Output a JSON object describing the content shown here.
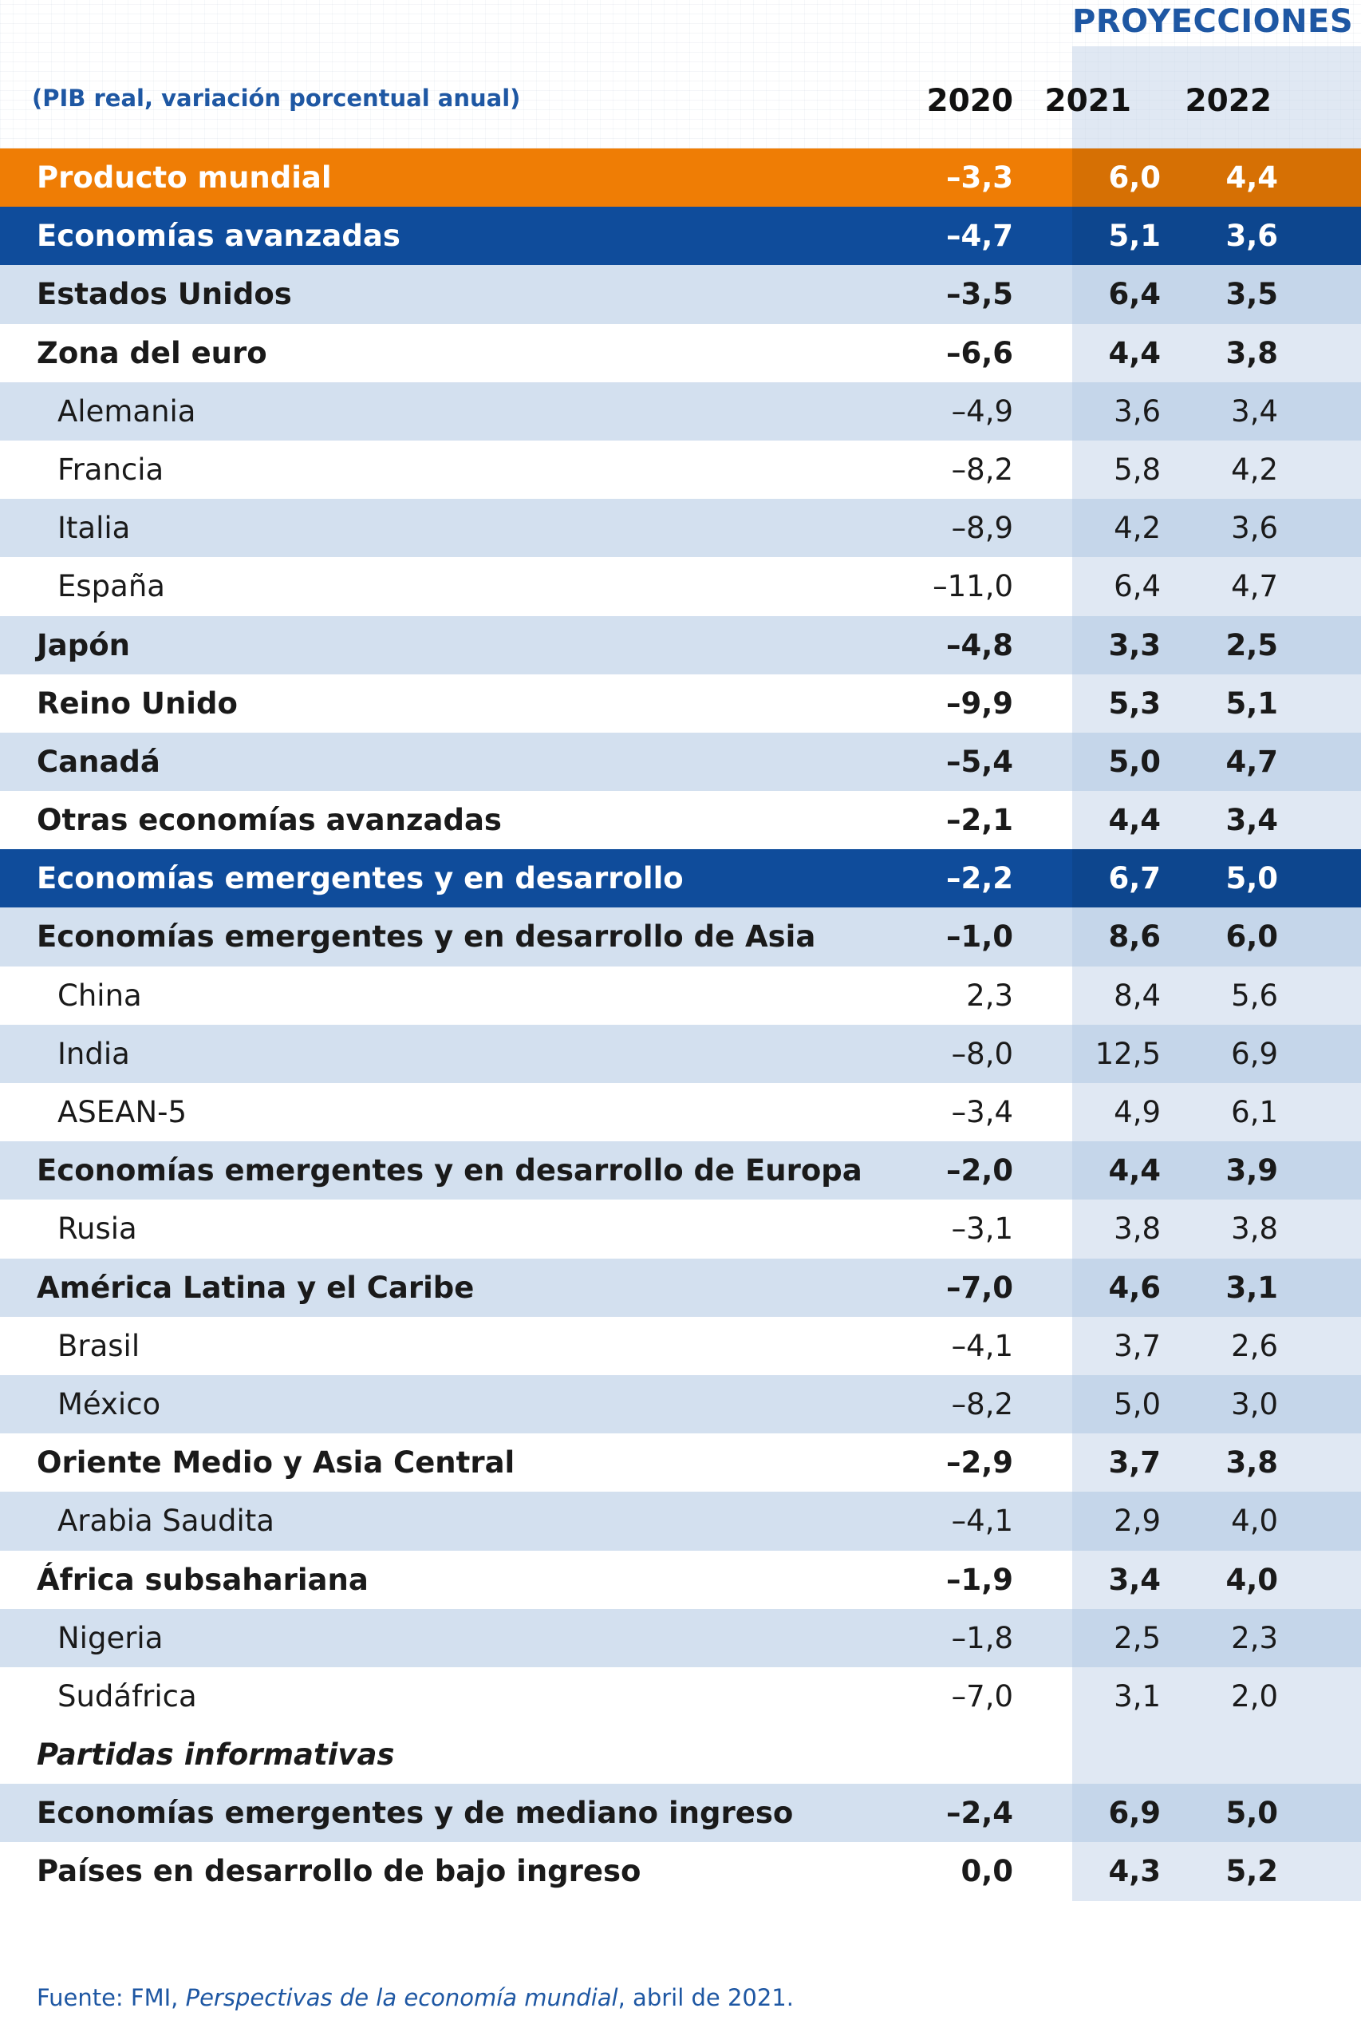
{
  "header": {
    "projections_label": "PROYECCIONES",
    "subtitle": "(PIB real, variación porcentual anual)",
    "years": [
      "2020",
      "2021",
      "2022"
    ]
  },
  "colors": {
    "world_row": "#ef7d05",
    "group_row": "#0f4c9b",
    "accent_text": "#1e57a3",
    "row_shade": "#c6d6ea"
  },
  "chart_data": {
    "type": "table",
    "columns": [
      "2020",
      "2021",
      "2022"
    ],
    "rows": [
      {
        "label": "Producto mundial",
        "values": [
          "–3,3",
          "6,0",
          "4,4"
        ],
        "style": "world",
        "indent": 0,
        "bold": true
      },
      {
        "label": "Economías avanzadas",
        "values": [
          "–4,7",
          "5,1",
          "3,6"
        ],
        "style": "group",
        "indent": 0,
        "bold": true
      },
      {
        "label": "Estados Unidos",
        "values": [
          "–3,5",
          "6,4",
          "3,5"
        ],
        "style": "shaded",
        "indent": 0,
        "bold": true
      },
      {
        "label": "Zona del euro",
        "values": [
          "–6,6",
          "4,4",
          "3,8"
        ],
        "style": "plain",
        "indent": 0,
        "bold": true
      },
      {
        "label": "Alemania",
        "values": [
          "–4,9",
          "3,6",
          "3,4"
        ],
        "style": "shaded",
        "indent": 1,
        "bold": false
      },
      {
        "label": "Francia",
        "values": [
          "–8,2",
          "5,8",
          "4,2"
        ],
        "style": "plain",
        "indent": 1,
        "bold": false
      },
      {
        "label": "Italia",
        "values": [
          "–8,9",
          "4,2",
          "3,6"
        ],
        "style": "shaded",
        "indent": 1,
        "bold": false
      },
      {
        "label": "España",
        "values": [
          "–11,0",
          "6,4",
          "4,7"
        ],
        "style": "plain",
        "indent": 1,
        "bold": false
      },
      {
        "label": "Japón",
        "values": [
          "–4,8",
          "3,3",
          "2,5"
        ],
        "style": "shaded",
        "indent": 0,
        "bold": true
      },
      {
        "label": "Reino Unido",
        "values": [
          "–9,9",
          "5,3",
          "5,1"
        ],
        "style": "plain",
        "indent": 0,
        "bold": true
      },
      {
        "label": "Canadá",
        "values": [
          "–5,4",
          "5,0",
          "4,7"
        ],
        "style": "shaded",
        "indent": 0,
        "bold": true
      },
      {
        "label": "Otras economías avanzadas",
        "values": [
          "–2,1",
          "4,4",
          "3,4"
        ],
        "style": "plain",
        "indent": 0,
        "bold": true
      },
      {
        "label": "Economías emergentes y en desarrollo",
        "values": [
          "–2,2",
          "6,7",
          "5,0"
        ],
        "style": "group",
        "indent": 0,
        "bold": true
      },
      {
        "label": "Economías emergentes y en desarrollo de Asia",
        "values": [
          "–1,0",
          "8,6",
          "6,0"
        ],
        "style": "shaded",
        "indent": 0,
        "bold": true
      },
      {
        "label": "China",
        "values": [
          "2,3",
          "8,4",
          "5,6"
        ],
        "style": "plain",
        "indent": 1,
        "bold": false
      },
      {
        "label": "India",
        "values": [
          "–8,0",
          "12,5",
          "6,9"
        ],
        "style": "shaded",
        "indent": 1,
        "bold": false
      },
      {
        "label": "ASEAN-5",
        "values": [
          "–3,4",
          "4,9",
          "6,1"
        ],
        "style": "plain",
        "indent": 1,
        "bold": false
      },
      {
        "label": "Economías emergentes y en desarrollo de Europa",
        "values": [
          "–2,0",
          "4,4",
          "3,9"
        ],
        "style": "shaded",
        "indent": 0,
        "bold": true
      },
      {
        "label": "Rusia",
        "values": [
          "–3,1",
          "3,8",
          "3,8"
        ],
        "style": "plain",
        "indent": 1,
        "bold": false
      },
      {
        "label": "América Latina y el Caribe",
        "values": [
          "–7,0",
          "4,6",
          "3,1"
        ],
        "style": "shaded",
        "indent": 0,
        "bold": true
      },
      {
        "label": "Brasil",
        "values": [
          "–4,1",
          "3,7",
          "2,6"
        ],
        "style": "plain",
        "indent": 1,
        "bold": false
      },
      {
        "label": "México",
        "values": [
          "–8,2",
          "5,0",
          "3,0"
        ],
        "style": "shaded",
        "indent": 1,
        "bold": false
      },
      {
        "label": "Oriente Medio y Asia Central",
        "values": [
          "–2,9",
          "3,7",
          "3,8"
        ],
        "style": "plain",
        "indent": 0,
        "bold": true
      },
      {
        "label": "Arabia Saudita",
        "values": [
          "–4,1",
          "2,9",
          "4,0"
        ],
        "style": "shaded",
        "indent": 1,
        "bold": false
      },
      {
        "label": "África subsahariana",
        "values": [
          "–1,9",
          "3,4",
          "4,0"
        ],
        "style": "plain",
        "indent": 0,
        "bold": true
      },
      {
        "label": "Nigeria",
        "values": [
          "–1,8",
          "2,5",
          "2,3"
        ],
        "style": "shaded",
        "indent": 1,
        "bold": false
      },
      {
        "label": "Sudáfrica",
        "values": [
          "–7,0",
          "3,1",
          "2,0"
        ],
        "style": "plain",
        "indent": 1,
        "bold": false
      },
      {
        "label": "Partidas informativas",
        "values": [
          "",
          "",
          ""
        ],
        "style": "note",
        "indent": 0,
        "bold": true
      },
      {
        "label": "Economías emergentes y de mediano ingreso",
        "values": [
          "–2,4",
          "6,9",
          "5,0"
        ],
        "style": "shaded",
        "indent": 0,
        "bold": true
      },
      {
        "label": "Países en desarrollo de bajo ingreso",
        "values": [
          "0,0",
          "4,3",
          "5,2"
        ],
        "style": "plain",
        "indent": 0,
        "bold": true
      }
    ]
  },
  "source": {
    "prefix": "Fuente: FMI, ",
    "title": "Perspectivas de la economía mundial",
    "suffix": ", abril de 2021."
  }
}
